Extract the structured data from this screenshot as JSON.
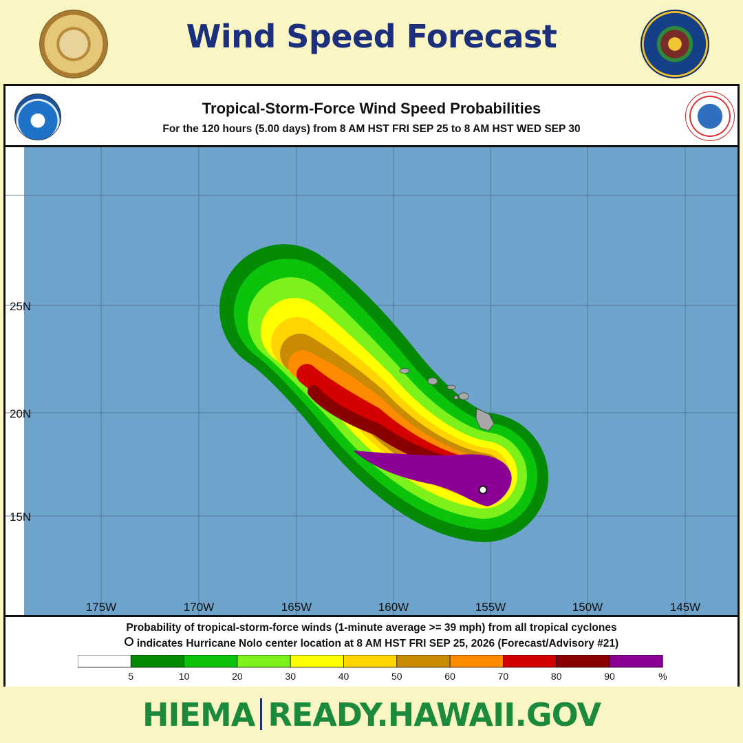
{
  "header": {
    "title": "Wind Speed Forecast",
    "seal_left": "STATE OF HAWAII 1959",
    "seal_right": "HIEMA seal"
  },
  "panel": {
    "title": "Tropical-Storm-Force Wind Speed Probabilities",
    "subtitle": "For the 120 hours (5.00 days) from 8 AM HST FRI SEP 25 to 8 AM HST WED SEP 30",
    "logo_left": "NOAA",
    "logo_right": "NATIONAL WEATHER SERVICE"
  },
  "map": {
    "lon_labels": [
      "175W",
      "170W",
      "165W",
      "160W",
      "155W",
      "150W",
      "145W"
    ],
    "lat_labels": [
      "25N",
      "20N",
      "15N"
    ],
    "ocean_color": "#6ea3cb",
    "storm_center": {
      "lon": -155.4,
      "lat": 16.3
    }
  },
  "footer": {
    "line1": "Probability of tropical-storm-force winds (1-minute average >= 39 mph) from all tropical cyclones",
    "line2": "indicates Hurricane Nolo center location at 8 AM HST FRI SEP 25, 2026 (Forecast/Advisory #21)",
    "scale_labels": [
      "5",
      "10",
      "20",
      "30",
      "40",
      "50",
      "60",
      "70",
      "80",
      "90",
      "%"
    ],
    "scale_colors": [
      "#ffffff",
      "#048a04",
      "#0bc30b",
      "#7cf21a",
      "#ffff00",
      "#ffd400",
      "#c98a04",
      "#ff8c00",
      "#d40000",
      "#8a0000",
      "#8c0096"
    ]
  },
  "bottom": {
    "brand": "HIEMA",
    "site": "READY.HAWAII.GOV"
  }
}
